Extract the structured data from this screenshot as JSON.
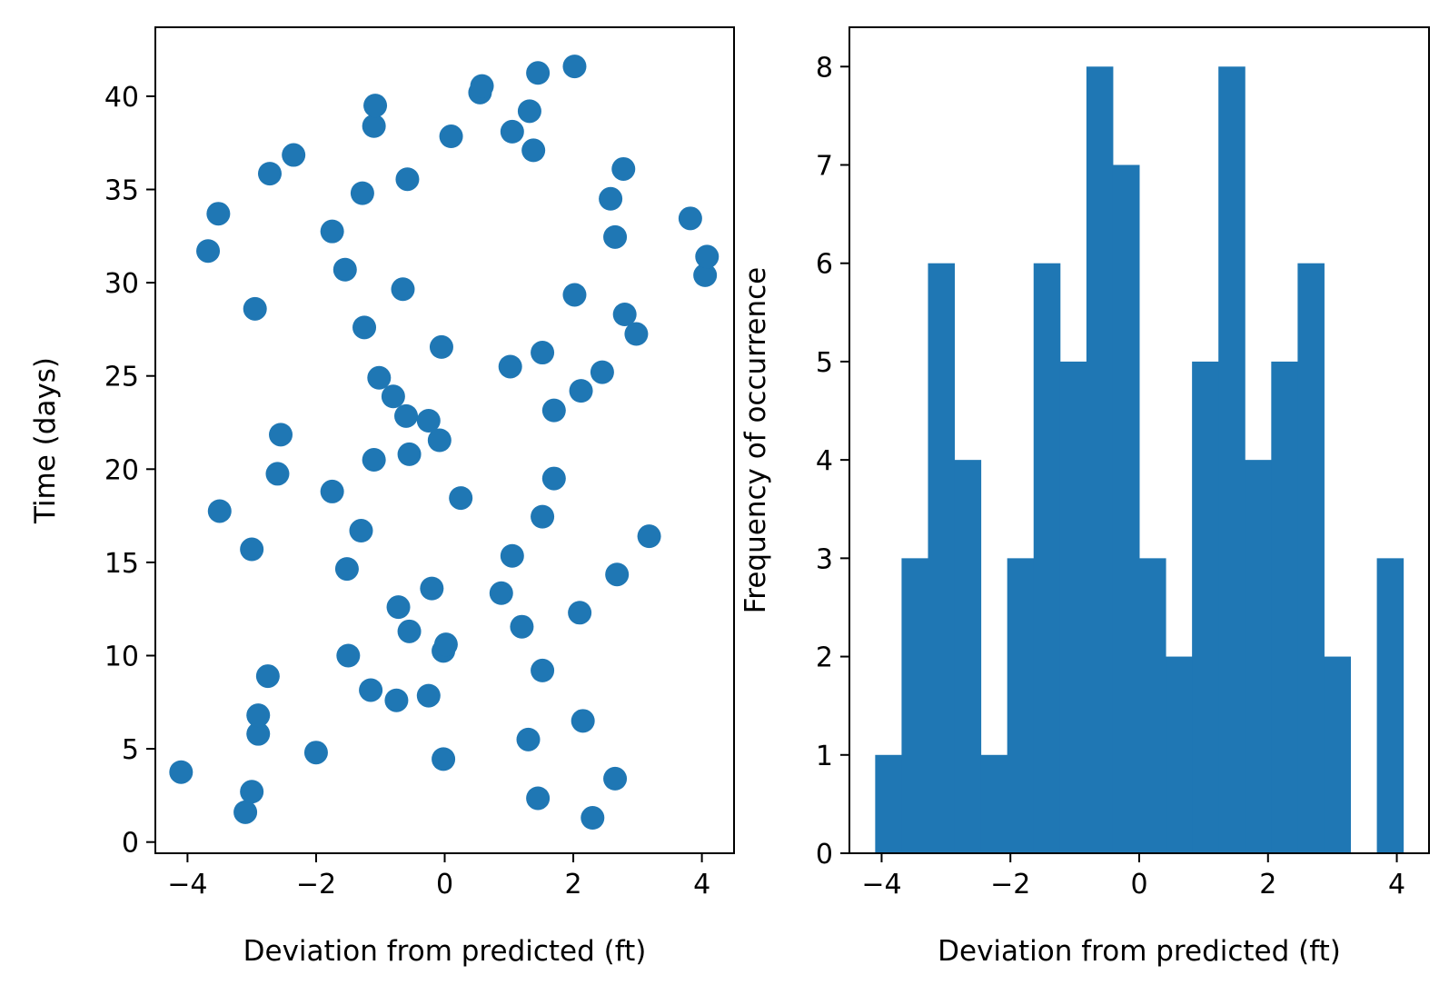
{
  "colors": {
    "marker": "#1f77b4",
    "axes": "#000000",
    "background": "#ffffff"
  },
  "chart_data": [
    {
      "type": "scatter",
      "xlabel": "Deviation from predicted (ft)",
      "ylabel": "Time (days)",
      "xlim": [
        -4.5,
        4.5
      ],
      "ylim": [
        -0.6,
        43.7
      ],
      "xticks": [
        -4,
        -2,
        0,
        2,
        4
      ],
      "xtick_labels": [
        "−4",
        "−2",
        "0",
        "2",
        "4"
      ],
      "yticks": [
        0,
        5,
        10,
        15,
        20,
        25,
        30,
        35,
        40
      ],
      "ytick_labels": [
        "0",
        "5",
        "10",
        "15",
        "20",
        "25",
        "30",
        "35",
        "40"
      ],
      "grid": false,
      "points": [
        {
          "x": -3.1,
          "y": 1.6
        },
        {
          "x": 2.3,
          "y": 1.3
        },
        {
          "x": -3.0,
          "y": 2.7
        },
        {
          "x": 1.45,
          "y": 2.35
        },
        {
          "x": 2.65,
          "y": 3.4
        },
        {
          "x": -4.1,
          "y": 3.75
        },
        {
          "x": -0.02,
          "y": 4.45
        },
        {
          "x": 1.3,
          "y": 5.5
        },
        {
          "x": -2.9,
          "y": 5.8
        },
        {
          "x": -2.0,
          "y": 4.8
        },
        {
          "x": -2.9,
          "y": 6.8
        },
        {
          "x": 2.15,
          "y": 6.5
        },
        {
          "x": -0.25,
          "y": 7.85
        },
        {
          "x": -0.75,
          "y": 7.6
        },
        {
          "x": -1.15,
          "y": 8.15
        },
        {
          "x": -2.75,
          "y": 8.9
        },
        {
          "x": 1.52,
          "y": 9.2
        },
        {
          "x": -1.5,
          "y": 10.0
        },
        {
          "x": -0.02,
          "y": 10.25
        },
        {
          "x": 0.02,
          "y": 10.6
        },
        {
          "x": -0.55,
          "y": 11.3
        },
        {
          "x": 1.2,
          "y": 11.55
        },
        {
          "x": -0.72,
          "y": 12.6
        },
        {
          "x": 2.1,
          "y": 12.3
        },
        {
          "x": -0.2,
          "y": 13.6
        },
        {
          "x": 0.88,
          "y": 13.35
        },
        {
          "x": 2.68,
          "y": 14.35
        },
        {
          "x": -1.52,
          "y": 14.65
        },
        {
          "x": -3.0,
          "y": 15.7
        },
        {
          "x": 1.05,
          "y": 15.35
        },
        {
          "x": 3.18,
          "y": 16.4
        },
        {
          "x": -1.3,
          "y": 16.7
        },
        {
          "x": -3.5,
          "y": 17.75
        },
        {
          "x": 1.52,
          "y": 17.45
        },
        {
          "x": 0.25,
          "y": 18.45
        },
        {
          "x": -1.75,
          "y": 18.8
        },
        {
          "x": 1.7,
          "y": 19.5
        },
        {
          "x": -2.6,
          "y": 19.75
        },
        {
          "x": -1.1,
          "y": 20.5
        },
        {
          "x": -0.55,
          "y": 20.8
        },
        {
          "x": -0.08,
          "y": 21.55
        },
        {
          "x": -2.55,
          "y": 21.85
        },
        {
          "x": -0.25,
          "y": 22.6
        },
        {
          "x": -0.6,
          "y": 22.85
        },
        {
          "x": 1.7,
          "y": 23.15
        },
        {
          "x": -0.8,
          "y": 23.9
        },
        {
          "x": 2.12,
          "y": 24.2
        },
        {
          "x": -1.02,
          "y": 24.9
        },
        {
          "x": 1.02,
          "y": 25.5
        },
        {
          "x": 2.45,
          "y": 25.2
        },
        {
          "x": 1.52,
          "y": 26.25
        },
        {
          "x": -0.05,
          "y": 26.55
        },
        {
          "x": 2.98,
          "y": 27.25
        },
        {
          "x": -1.25,
          "y": 27.6
        },
        {
          "x": 2.8,
          "y": 28.3
        },
        {
          "x": -2.95,
          "y": 28.6
        },
        {
          "x": 2.02,
          "y": 29.35
        },
        {
          "x": -0.65,
          "y": 29.65
        },
        {
          "x": -1.55,
          "y": 30.7
        },
        {
          "x": 4.05,
          "y": 30.4
        },
        {
          "x": 4.08,
          "y": 31.4
        },
        {
          "x": -3.68,
          "y": 31.7
        },
        {
          "x": 2.65,
          "y": 32.45
        },
        {
          "x": -1.75,
          "y": 32.75
        },
        {
          "x": 3.82,
          "y": 33.45
        },
        {
          "x": -3.52,
          "y": 33.7
        },
        {
          "x": 2.58,
          "y": 34.5
        },
        {
          "x": -1.28,
          "y": 34.8
        },
        {
          "x": -0.58,
          "y": 35.55
        },
        {
          "x": -2.72,
          "y": 35.85
        },
        {
          "x": 2.78,
          "y": 36.1
        },
        {
          "x": -2.35,
          "y": 36.85
        },
        {
          "x": 1.38,
          "y": 37.1
        },
        {
          "x": 0.1,
          "y": 37.85
        },
        {
          "x": 1.05,
          "y": 38.1
        },
        {
          "x": -1.1,
          "y": 38.4
        },
        {
          "x": 1.32,
          "y": 39.2
        },
        {
          "x": -1.08,
          "y": 39.5
        },
        {
          "x": 0.55,
          "y": 40.2
        },
        {
          "x": 0.58,
          "y": 40.55
        },
        {
          "x": 1.45,
          "y": 41.25
        },
        {
          "x": 2.02,
          "y": 41.6
        }
      ]
    },
    {
      "type": "bar",
      "xlabel": "Deviation from predicted (ft)",
      "ylabel": "Frequency of occurrence",
      "xlim": [
        -4.5,
        4.5
      ],
      "ylim": [
        0,
        8.4
      ],
      "xticks": [
        -4,
        -2,
        0,
        2,
        4
      ],
      "xtick_labels": [
        "−4",
        "−2",
        "0",
        "2",
        "4"
      ],
      "yticks": [
        0,
        1,
        2,
        3,
        4,
        5,
        6,
        7,
        8
      ],
      "ytick_labels": [
        "0",
        "1",
        "2",
        "3",
        "4",
        "5",
        "6",
        "7",
        "8"
      ],
      "grid": false,
      "bin_edges": [
        -4.1,
        -3.69,
        -3.28,
        -2.87,
        -2.46,
        -2.05,
        -1.64,
        -1.23,
        -0.82,
        -0.41,
        0.0,
        0.41,
        0.82,
        1.23,
        1.64,
        2.05,
        2.46,
        2.87,
        3.28,
        3.69,
        4.1
      ],
      "counts": [
        1,
        3,
        6,
        4,
        1,
        3,
        6,
        5,
        8,
        7,
        3,
        2,
        5,
        8,
        4,
        5,
        6,
        2,
        0,
        3
      ]
    }
  ]
}
